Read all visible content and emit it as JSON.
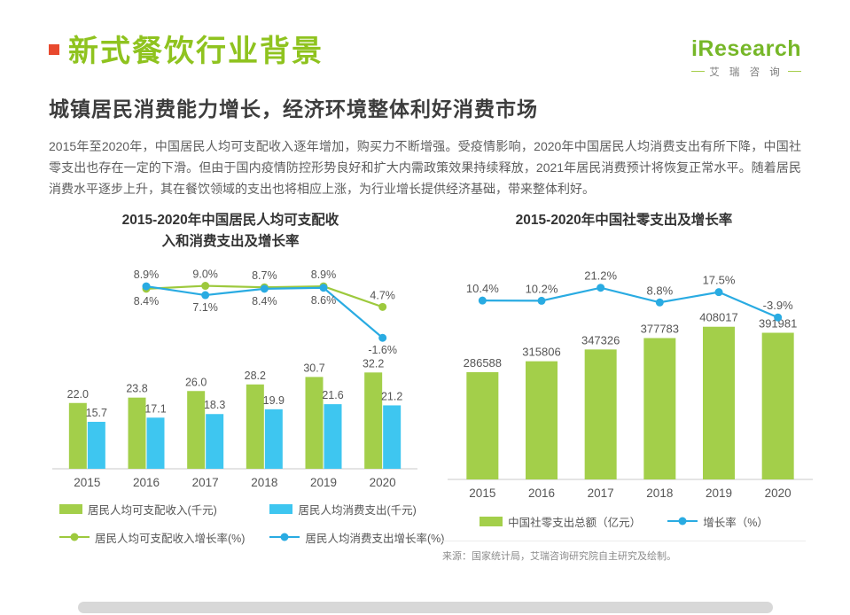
{
  "page": {
    "title": "新式餐饮行业背景",
    "subtitle": "城镇居民消费能力增长，经济环境整体利好消费市场",
    "paragraph": "2015年至2020年，中国居民人均可支配收入逐年增加，购买力不断增强。受疫情影响，2020年中国居民人均消费支出有所下降，中国社零支出也存在一定的下滑。但由于国内疫情防控形势良好和扩大内需政策效果持续释放，2021年居民消费预计将恢复正常水平。随着居民消费水平逐步上升，其在餐饮领域的支出也将相应上涨，为行业增长提供经济基础，带来整体利好。",
    "source_note": "来源：国家统计局，艾瑞咨询研究院自主研究及绘制。"
  },
  "logo": {
    "name": "iResearch",
    "caption": "艾 瑞 咨 询"
  },
  "colors": {
    "title_green": "#8fc31f",
    "accent_red": "#e8492e",
    "bar_green": "#a3cf4a",
    "bar_cyan": "#3ec6f0",
    "line_green": "#9dc93d",
    "line_blue": "#29abe2"
  },
  "chart_data": [
    {
      "type": "bar",
      "title": "2015-2020年中国居民人均可支配收入和消费支出及增长率",
      "title_lines": [
        "2015-2020年中国居民人均可支配收",
        "入和消费支出及增长率"
      ],
      "categories": [
        "2015",
        "2016",
        "2017",
        "2018",
        "2019",
        "2020"
      ],
      "bar_ylim": [
        0,
        40
      ],
      "line_ylim": [
        -3,
        10
      ],
      "grid": false,
      "legend_position": "bottom",
      "bar_series": [
        {
          "name": "居民人均可支配收入(千元)",
          "color": "#a3cf4a",
          "values": [
            22.0,
            23.8,
            26.0,
            28.2,
            30.7,
            32.2
          ],
          "value_labels": [
            "22.0",
            "23.8",
            "26.0",
            "28.2",
            "30.7",
            "32.2"
          ]
        },
        {
          "name": "居民人均消费支出(千元)",
          "color": "#3ec6f0",
          "values": [
            15.7,
            17.1,
            18.3,
            19.9,
            21.6,
            21.2
          ],
          "value_labels": [
            "15.7",
            "17.1",
            "18.3",
            "19.9",
            "21.6",
            "21.2"
          ]
        }
      ],
      "line_series": [
        {
          "name": "居民人均可支配收入增长率(%)",
          "color": "#9dc93d",
          "start_index": 1,
          "values": [
            8.4,
            9.0,
            8.7,
            8.9,
            4.7
          ],
          "labels": [
            "8.4%",
            "9.0%",
            "8.7%",
            "8.9%",
            "4.7%"
          ],
          "label_positions": [
            "below",
            "above",
            "above",
            "above",
            "above"
          ]
        },
        {
          "name": "居民人均消费支出增长率(%)",
          "color": "#29abe2",
          "start_index": 1,
          "values": [
            8.9,
            7.1,
            8.4,
            8.6,
            -1.6
          ],
          "labels": [
            "8.9%",
            "7.1%",
            "8.4%",
            "8.6%",
            "-1.6%"
          ],
          "label_positions": [
            "above",
            "below",
            "below",
            "below",
            "below"
          ]
        }
      ]
    },
    {
      "type": "bar",
      "title": "2015-2020年中国社零支出及增长率",
      "title_lines": [
        "2015-2020年中国社零支出及增长率"
      ],
      "categories": [
        "2015",
        "2016",
        "2017",
        "2018",
        "2019",
        "2020"
      ],
      "bar_ylim": [
        0,
        450000
      ],
      "line_ylim": [
        -6,
        24
      ],
      "grid": false,
      "legend_position": "bottom",
      "bar_series": [
        {
          "name": "中国社零支出总额（亿元）",
          "color": "#a3cf4a",
          "values": [
            286588,
            315806,
            347326,
            377783,
            408017,
            391981
          ],
          "value_labels": [
            "286588",
            "315806",
            "347326",
            "377783",
            "408017",
            "391981"
          ]
        }
      ],
      "line_series": [
        {
          "name": "增长率（%）",
          "color": "#29abe2",
          "start_index": 0,
          "values": [
            10.4,
            10.2,
            21.2,
            8.8,
            17.5,
            -3.9
          ],
          "labels": [
            "10.4%",
            "10.2%",
            "21.2%",
            "8.8%",
            "17.5%",
            "-3.9%"
          ],
          "label_positions": [
            "above",
            "above",
            "above",
            "above",
            "above",
            "above"
          ]
        }
      ]
    }
  ]
}
